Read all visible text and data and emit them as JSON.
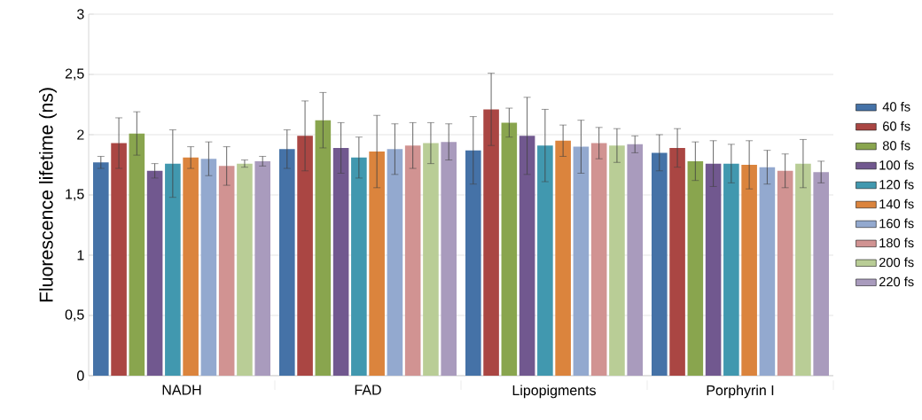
{
  "chart_data": {
    "type": "bar",
    "ylabel": "Fluorescence lifetime (ns)",
    "categories": [
      "NADH",
      "FAD",
      "Lipopigments",
      "Porphyrin I"
    ],
    "ylim": [
      0,
      3
    ],
    "yticks": [
      0,
      {
        "value": 0.5,
        "label": "0,5"
      },
      1,
      {
        "value": 1.5,
        "label": "1,5"
      },
      2,
      {
        "value": 2.5,
        "label": "2,5"
      },
      3
    ],
    "grid": "y",
    "legend": "right",
    "series": [
      {
        "name": "40 fs",
        "color": "#4572a7",
        "values": [
          1.77,
          1.88,
          1.87,
          1.85
        ],
        "errors": [
          0.05,
          0.16,
          0.28,
          0.15
        ]
      },
      {
        "name": "60 fs",
        "color": "#aa4643",
        "values": [
          1.93,
          1.99,
          2.21,
          1.89
        ],
        "errors": [
          0.21,
          0.29,
          0.3,
          0.16
        ]
      },
      {
        "name": "80 fs",
        "color": "#89a54e",
        "values": [
          2.01,
          2.12,
          2.1,
          1.78
        ],
        "errors": [
          0.18,
          0.23,
          0.12,
          0.16
        ]
      },
      {
        "name": "100 fs",
        "color": "#71588f",
        "values": [
          1.7,
          1.89,
          1.99,
          1.76
        ],
        "errors": [
          0.06,
          0.21,
          0.32,
          0.19
        ]
      },
      {
        "name": "120 fs",
        "color": "#4198af",
        "values": [
          1.76,
          1.81,
          1.91,
          1.76
        ],
        "errors": [
          0.28,
          0.17,
          0.3,
          0.16
        ]
      },
      {
        "name": "140 fs",
        "color": "#db843d",
        "values": [
          1.81,
          1.86,
          1.95,
          1.75
        ],
        "errors": [
          0.09,
          0.3,
          0.13,
          0.2
        ]
      },
      {
        "name": "160 fs",
        "color": "#93a9cf",
        "values": [
          1.8,
          1.88,
          1.9,
          1.73
        ],
        "errors": [
          0.14,
          0.21,
          0.22,
          0.14
        ]
      },
      {
        "name": "180 fs",
        "color": "#d19392",
        "values": [
          1.74,
          1.91,
          1.93,
          1.7
        ],
        "errors": [
          0.16,
          0.19,
          0.13,
          0.14
        ]
      },
      {
        "name": "200 fs",
        "color": "#b9cd96",
        "values": [
          1.76,
          1.93,
          1.91,
          1.76
        ],
        "errors": [
          0.03,
          0.17,
          0.14,
          0.2
        ]
      },
      {
        "name": "220 fs",
        "color": "#a99bbd",
        "values": [
          1.78,
          1.94,
          1.92,
          1.69
        ],
        "errors": [
          0.04,
          0.15,
          0.07,
          0.09
        ]
      }
    ]
  }
}
